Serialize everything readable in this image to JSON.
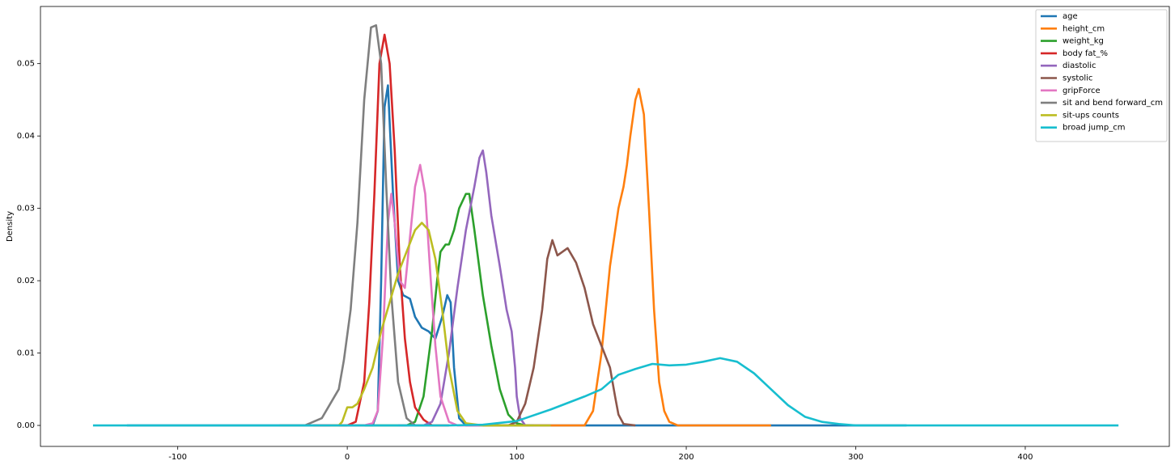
{
  "chart_data": {
    "type": "line",
    "y_label": "Density",
    "xlim": [
      -181,
      485
    ],
    "ylim": [
      -0.0029,
      0.0579
    ],
    "xticks": [
      -100,
      0,
      100,
      200,
      300,
      400
    ],
    "yticks": [
      {
        "value": 0,
        "label": "0.00"
      },
      {
        "value": 0.01,
        "label": "0.01"
      },
      {
        "value": 0.02,
        "label": "0.02"
      },
      {
        "value": 0.03,
        "label": "0.03"
      },
      {
        "value": 0.04,
        "label": "0.04"
      },
      {
        "value": 0.05,
        "label": "0.05"
      }
    ],
    "legend": "upper right",
    "series": [
      {
        "name": "age",
        "color": "#1f77b4",
        "x": [
          -130,
          15,
          18,
          20,
          22,
          24,
          27,
          30,
          33,
          37,
          40,
          44,
          48,
          52,
          56,
          59,
          61,
          63,
          66,
          70,
          330
        ],
        "values": [
          0,
          0,
          0.002,
          0.02,
          0.044,
          0.047,
          0.032,
          0.02,
          0.018,
          0.0175,
          0.015,
          0.0135,
          0.013,
          0.012,
          0.015,
          0.018,
          0.017,
          0.008,
          0.001,
          0,
          0
        ]
      },
      {
        "name": "height_cm",
        "color": "#ff7f0e",
        "x": [
          100,
          140,
          145,
          150,
          155,
          160,
          163,
          165,
          167,
          170,
          172,
          175,
          178,
          181,
          184,
          187,
          190,
          195,
          250
        ],
        "values": [
          0,
          0,
          0.002,
          0.01,
          0.022,
          0.03,
          0.033,
          0.036,
          0.04,
          0.045,
          0.0465,
          0.043,
          0.03,
          0.016,
          0.006,
          0.002,
          0.0005,
          0,
          0
        ]
      },
      {
        "name": "weight_kg",
        "color": "#2ca02c",
        "x": [
          0,
          35,
          40,
          45,
          50,
          53,
          55,
          58,
          60,
          63,
          66,
          70,
          72,
          75,
          80,
          85,
          90,
          95,
          100,
          105,
          110
        ],
        "values": [
          0,
          0,
          0.0005,
          0.004,
          0.013,
          0.02,
          0.024,
          0.025,
          0.025,
          0.027,
          0.03,
          0.032,
          0.032,
          0.027,
          0.018,
          0.011,
          0.005,
          0.0015,
          0.0003,
          0,
          0
        ]
      },
      {
        "name": "body fat_%",
        "color": "#d62728",
        "x": [
          -20,
          0,
          5,
          10,
          13,
          16,
          19,
          22,
          25,
          28,
          31,
          34,
          37,
          40,
          45,
          50,
          60
        ],
        "values": [
          0,
          0,
          0.0005,
          0.006,
          0.017,
          0.032,
          0.05,
          0.054,
          0.05,
          0.038,
          0.022,
          0.012,
          0.006,
          0.0025,
          0.0008,
          0,
          0
        ]
      },
      {
        "name": "diastolic",
        "color": "#9467bd",
        "x": [
          30,
          45,
          50,
          55,
          60,
          65,
          70,
          75,
          78,
          80,
          82,
          85,
          90,
          94,
          97,
          99,
          100,
          102,
          105,
          120
        ],
        "values": [
          0,
          0,
          0.0005,
          0.003,
          0.01,
          0.019,
          0.027,
          0.033,
          0.037,
          0.038,
          0.035,
          0.029,
          0.022,
          0.016,
          0.013,
          0.008,
          0.004,
          0.001,
          0,
          0
        ]
      },
      {
        "name": "systolic",
        "color": "#8c564b",
        "x": [
          80,
          95,
          100,
          105,
          110,
          115,
          118,
          121,
          124,
          127,
          130,
          135,
          140,
          145,
          150,
          155,
          158,
          160,
          163,
          170
        ],
        "values": [
          0,
          0,
          0.0005,
          0.003,
          0.008,
          0.016,
          0.023,
          0.0256,
          0.0235,
          0.024,
          0.0245,
          0.0225,
          0.019,
          0.014,
          0.011,
          0.008,
          0.004,
          0.0015,
          0.0002,
          0
        ]
      },
      {
        "name": "gripForce",
        "color": "#e377c2",
        "x": [
          0,
          10,
          15,
          18,
          21,
          24,
          26,
          28,
          31,
          34,
          37,
          40,
          43,
          46,
          49,
          52,
          55,
          60,
          65,
          80
        ],
        "values": [
          0,
          0,
          0.0003,
          0.002,
          0.012,
          0.028,
          0.032,
          0.028,
          0.02,
          0.019,
          0.026,
          0.033,
          0.036,
          0.032,
          0.021,
          0.011,
          0.004,
          0.0005,
          0,
          0
        ]
      },
      {
        "name": "sit and bend forward_cm",
        "color": "#7f7f7f",
        "x": [
          -40,
          -25,
          -20,
          -15,
          -10,
          -5,
          -2,
          2,
          6,
          10,
          14,
          17,
          20,
          23,
          26,
          30,
          35,
          40,
          50
        ],
        "values": [
          0,
          0,
          0.0005,
          0.001,
          0.003,
          0.005,
          0.009,
          0.016,
          0.028,
          0.045,
          0.055,
          0.0553,
          0.05,
          0.033,
          0.018,
          0.006,
          0.001,
          0,
          0
        ]
      },
      {
        "name": "sit-ups counts",
        "color": "#bcbd22",
        "x": [
          -10,
          -5,
          -3,
          0,
          3,
          6,
          10,
          15,
          20,
          25,
          30,
          35,
          40,
          44,
          48,
          52,
          56,
          60,
          65,
          70,
          80,
          120
        ],
        "values": [
          0,
          0,
          0.0005,
          0.0025,
          0.0025,
          0.003,
          0.005,
          0.008,
          0.013,
          0.017,
          0.021,
          0.024,
          0.027,
          0.028,
          0.027,
          0.023,
          0.016,
          0.008,
          0.002,
          0.0003,
          0,
          0
        ]
      },
      {
        "name": "broad jump_cm",
        "color": "#17becf",
        "x": [
          -150,
          60,
          80,
          100,
          120,
          140,
          150,
          160,
          170,
          180,
          190,
          200,
          210,
          220,
          230,
          240,
          250,
          260,
          270,
          280,
          290,
          300,
          320,
          455
        ],
        "values": [
          0,
          0,
          0.0001,
          0.0006,
          0.0022,
          0.004,
          0.005,
          0.007,
          0.0078,
          0.0085,
          0.0083,
          0.0084,
          0.0088,
          0.0093,
          0.0088,
          0.0072,
          0.005,
          0.0028,
          0.0012,
          0.0005,
          0.0002,
          0,
          0,
          0
        ]
      }
    ]
  }
}
